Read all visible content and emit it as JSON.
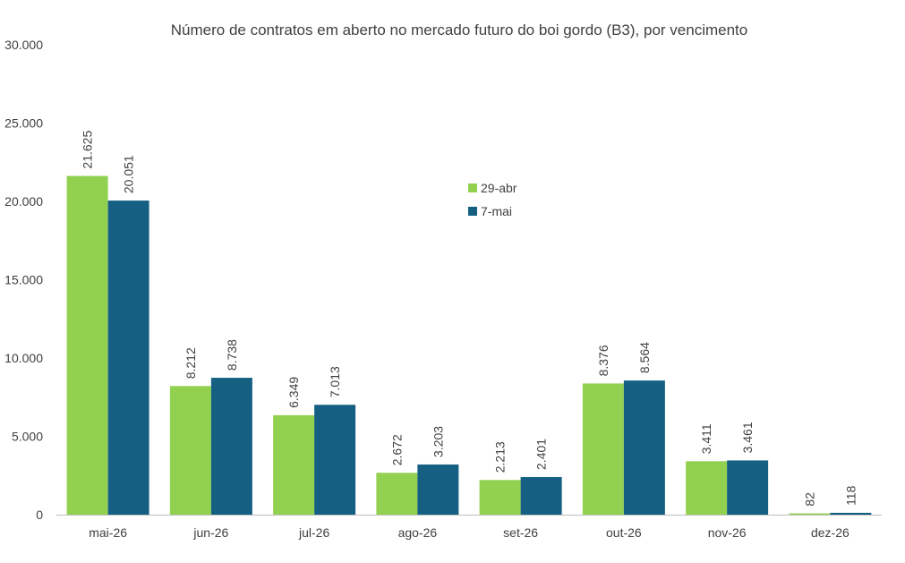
{
  "chart_data": {
    "type": "bar",
    "title": "Número de contratos em aberto no mercado futuro do boi gordo (B3), por vencimento",
    "xlabel": "",
    "ylabel": "",
    "ylim": [
      0,
      30000
    ],
    "yticks": [
      0,
      5000,
      10000,
      15000,
      20000,
      25000,
      30000
    ],
    "ytick_labels": [
      "0",
      "5.000",
      "10.000",
      "15.000",
      "20.000",
      "25.000",
      "30.000"
    ],
    "grid": false,
    "legend_position": "center",
    "categories": [
      "mai-26",
      "jun-26",
      "jul-26",
      "ago-26",
      "set-26",
      "out-26",
      "nov-26",
      "dez-26"
    ],
    "series": [
      {
        "name": "29-abr",
        "color": "#92d050",
        "values": [
          21625,
          8212,
          6349,
          2672,
          2213,
          8376,
          3411,
          82
        ],
        "labels": [
          "21.625",
          "8.212",
          "6.349",
          "2.672",
          "2.213",
          "8.376",
          "3.411",
          "82"
        ]
      },
      {
        "name": "7-mai",
        "color": "#156082",
        "values": [
          20051,
          8738,
          7013,
          3203,
          2401,
          8564,
          3461,
          118
        ],
        "labels": [
          "20.051",
          "8.738",
          "7.013",
          "3.203",
          "2.401",
          "8.564",
          "3.461",
          "118"
        ]
      }
    ]
  }
}
